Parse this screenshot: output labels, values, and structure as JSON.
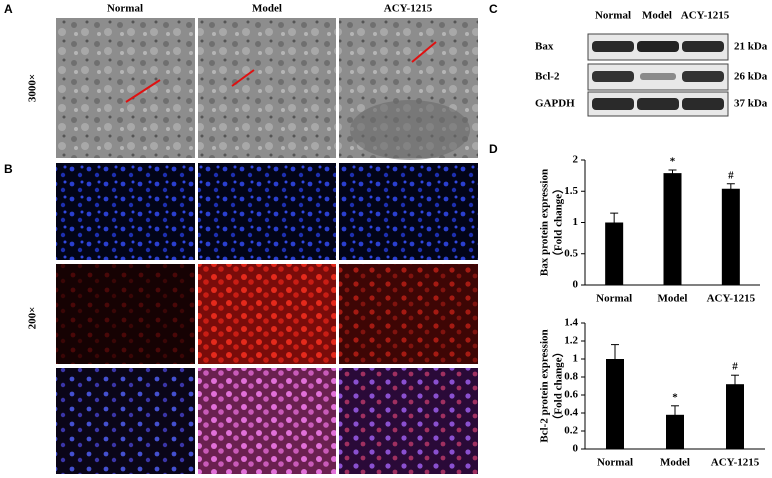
{
  "panel_labels": [
    "A",
    "B",
    "C",
    "D"
  ],
  "microscopy": {
    "columns": [
      "Normal",
      "Model",
      "ACY-1215"
    ],
    "em_magnification": "3000×",
    "fluorescence_magnification": "200×"
  },
  "western_blot": {
    "lanes": [
      "Normal",
      "Model",
      "ACY-1215"
    ],
    "bands": [
      {
        "name": "Bax",
        "size": "21 kDa"
      },
      {
        "name": "Bcl-2",
        "size": "26 kDa"
      },
      {
        "name": "GAPDH",
        "size": "37 kDa"
      }
    ]
  },
  "chart_data": [
    {
      "type": "bar",
      "ylabel": "Bax protein expression",
      "ylabel2": "（Fold change）",
      "categories": [
        "Normal",
        "Model",
        "ACY-1215"
      ],
      "values": [
        1.0,
        1.79,
        1.54
      ],
      "errors": [
        0.15,
        0.05,
        0.08
      ],
      "annotations": [
        null,
        "*",
        "#"
      ],
      "color": "#000000",
      "ylim": [
        0,
        2
      ],
      "yticks": [
        0,
        0.5,
        1,
        1.5,
        2
      ]
    },
    {
      "type": "bar",
      "ylabel": "Bcl-2 protein expression",
      "ylabel2": "（Fold change）",
      "categories": [
        "Normal",
        "Model",
        "ACY-1215"
      ],
      "values": [
        1.0,
        0.38,
        0.72
      ],
      "errors": [
        0.16,
        0.1,
        0.1
      ],
      "annotations": [
        null,
        "*",
        "#"
      ],
      "color": "#000000",
      "ylim": [
        0,
        1.4
      ],
      "yticks": [
        0,
        0.2,
        0.4,
        0.6,
        0.8,
        1,
        1.2,
        1.4
      ]
    }
  ]
}
